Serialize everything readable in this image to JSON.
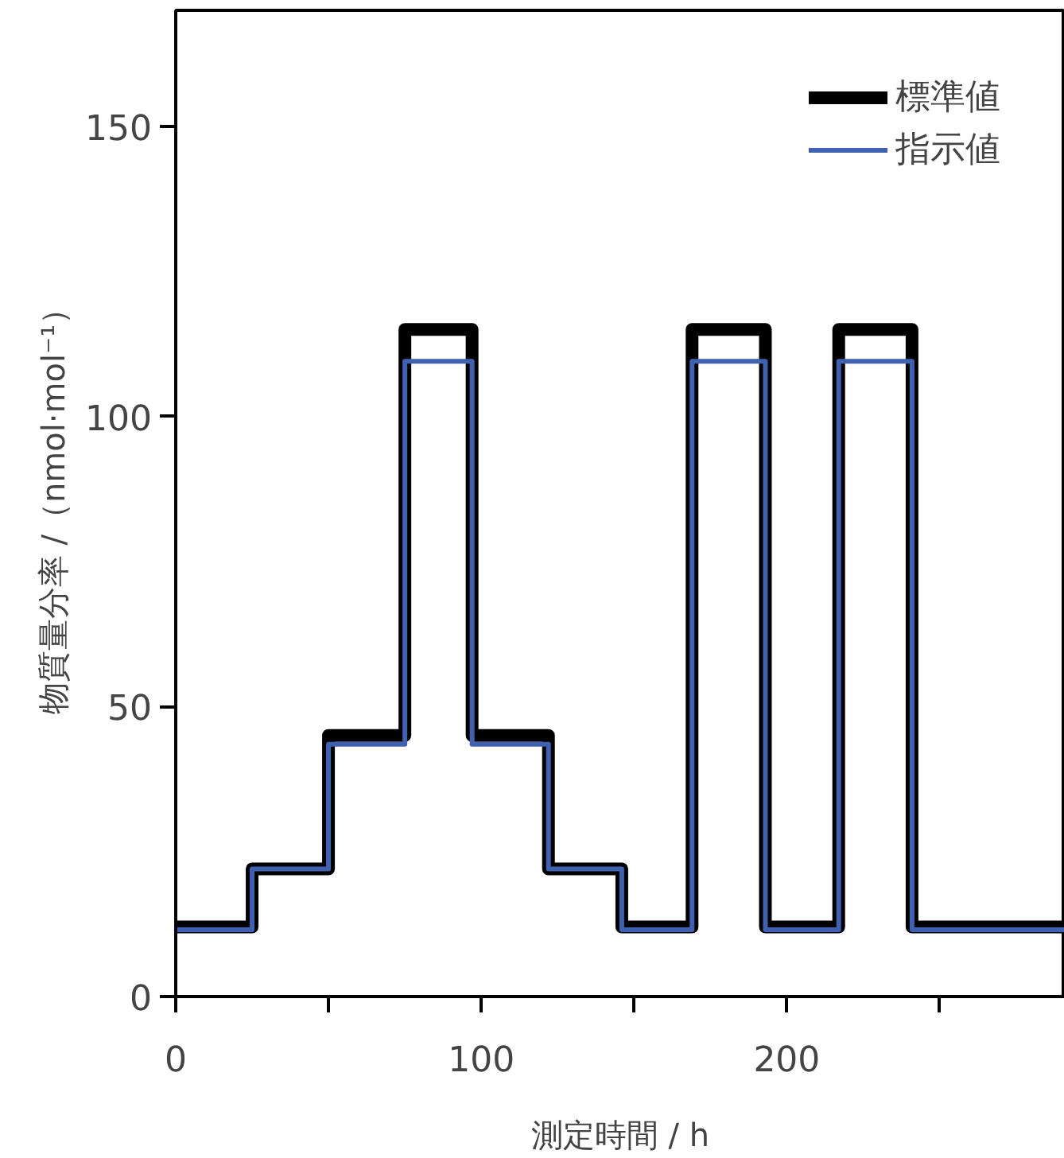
{
  "chart_data": {
    "type": "step",
    "xlabel": "測定時間 / h",
    "ylabel": "物質量分率 /（nmol·mol⁻¹）",
    "xlim": [
      0,
      291
    ],
    "ylim": [
      0,
      170
    ],
    "xticks": [
      0,
      {
        "value": 50,
        "label": null
      },
      100,
      {
        "value": 150,
        "label": null
      },
      200,
      {
        "value": 250,
        "label": null
      }
    ],
    "yticks": [
      0,
      50,
      100,
      150
    ],
    "legend": "top right",
    "grid": false,
    "line_style": "solid",
    "marker": "none",
    "series": [
      {
        "name": "標準値",
        "color": "#000000",
        "x": [
          0,
          25,
          50,
          75,
          97,
          122,
          146,
          169,
          193,
          217,
          241,
          291
        ],
        "values": [
          12,
          22,
          45,
          115,
          45,
          22,
          12,
          115,
          12,
          115,
          12,
          12
        ]
      },
      {
        "name": "指示値",
        "color": "#4060b0",
        "x": [
          0,
          25,
          50,
          75,
          97,
          122,
          146,
          169,
          193,
          217,
          241,
          291
        ],
        "values": [
          11.5,
          22,
          43.5,
          109.5,
          43.5,
          22,
          11.5,
          109.5,
          11.5,
          109.5,
          11.5,
          11.5
        ]
      }
    ]
  }
}
